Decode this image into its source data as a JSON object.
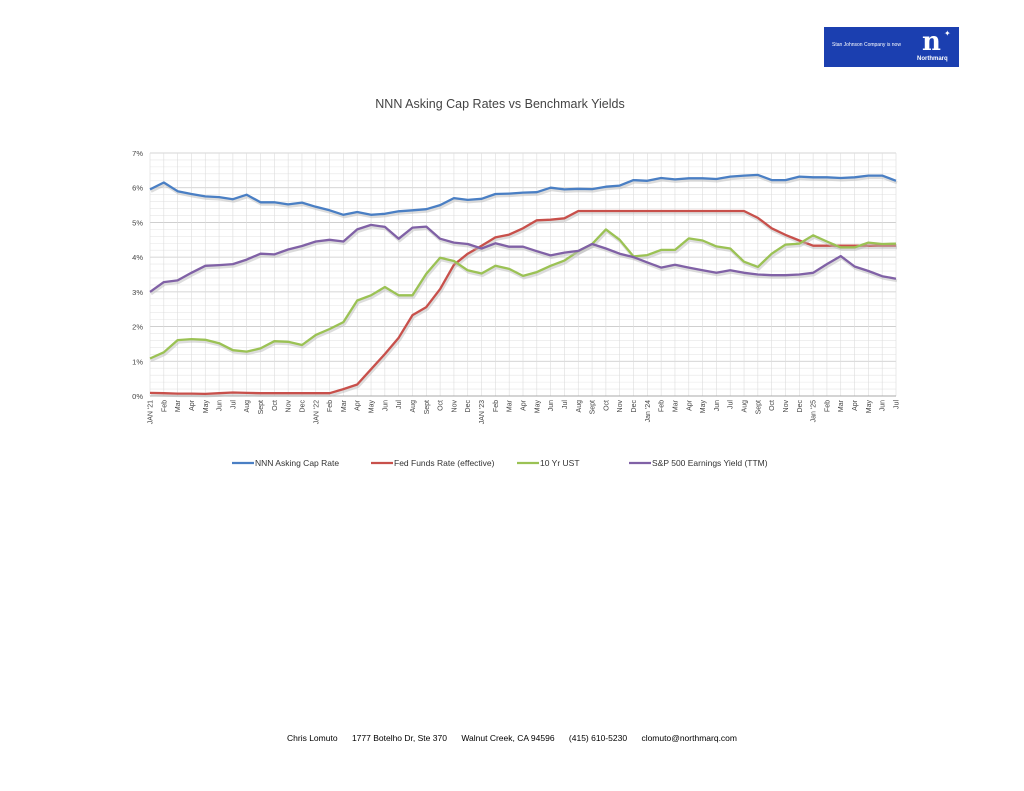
{
  "logo": {
    "tagline": "Stan Johnson Company is now",
    "mark": "n",
    "brand": "Northmarq"
  },
  "footer": {
    "name": "Chris Lomuto",
    "address": "1777 Botelho Dr, Ste 370",
    "city": "Walnut Creek, CA  94596",
    "phone": "(415) 610-5230",
    "email": "clomuto@northmarq.com"
  },
  "chart_data": {
    "type": "line",
    "title": "NNN Asking Cap Rates vs Benchmark Yields",
    "xlabel": "",
    "ylabel": "",
    "ylim": [
      0,
      7
    ],
    "yticks": [
      "0%",
      "1%",
      "2%",
      "3%",
      "4%",
      "5%",
      "6%",
      "7%"
    ],
    "grid": true,
    "legend": "bottom",
    "categories": [
      "JAN '21",
      "Feb",
      "Mar",
      "Apr",
      "May",
      "Jun",
      "Jul",
      "Aug",
      "Sept",
      "Oct",
      "Nov",
      "Dec",
      "JAN '22",
      "Feb",
      "Mar",
      "Apr",
      "May",
      "Jun",
      "Jul",
      "Aug",
      "Sept",
      "Oct",
      "Nov",
      "Dec",
      "JAN '23",
      "Feb",
      "Mar",
      "Apr",
      "May",
      "Jun",
      "Jul",
      "Aug",
      "Sept",
      "Oct",
      "Nov",
      "Dec",
      "Jan '24",
      "Feb",
      "Mar",
      "Apr",
      "May",
      "Jun",
      "Jul",
      "Aug",
      "Sept",
      "Oct",
      "Nov",
      "Dec",
      "Jan '25",
      "Feb",
      "Mar",
      "Apr",
      "May",
      "Jun",
      "Jul"
    ],
    "series": [
      {
        "name": "NNN Asking Cap Rate",
        "color": "#4a7fc4",
        "values": [
          5.95,
          6.15,
          5.9,
          5.82,
          5.75,
          5.73,
          5.67,
          5.8,
          5.58,
          5.58,
          5.52,
          5.57,
          5.45,
          5.35,
          5.22,
          5.3,
          5.22,
          5.25,
          5.32,
          5.35,
          5.38,
          5.5,
          5.7,
          5.65,
          5.68,
          5.82,
          5.83,
          5.86,
          5.87,
          6.0,
          5.95,
          5.97,
          5.96,
          6.03,
          6.06,
          6.22,
          6.2,
          6.28,
          6.24,
          6.27,
          6.27,
          6.25,
          6.32,
          6.35,
          6.37,
          6.22,
          6.22,
          6.32,
          6.3,
          6.3,
          6.28,
          6.3,
          6.35,
          6.35,
          6.2
        ]
      },
      {
        "name": "Fed Funds Rate (effective)",
        "color": "#c8504b",
        "values": [
          0.09,
          0.08,
          0.07,
          0.07,
          0.06,
          0.08,
          0.1,
          0.09,
          0.08,
          0.08,
          0.08,
          0.08,
          0.08,
          0.08,
          0.2,
          0.33,
          0.77,
          1.21,
          1.68,
          2.33,
          2.56,
          3.08,
          3.78,
          4.1,
          4.33,
          4.57,
          4.65,
          4.83,
          5.06,
          5.08,
          5.12,
          5.33,
          5.33,
          5.33,
          5.33,
          5.33,
          5.33,
          5.33,
          5.33,
          5.33,
          5.33,
          5.33,
          5.33,
          5.33,
          5.13,
          4.83,
          4.64,
          4.48,
          4.33,
          4.33,
          4.33,
          4.33,
          4.33,
          4.33,
          4.33
        ]
      },
      {
        "name": "10 Yr UST",
        "color": "#9bc254",
        "values": [
          1.08,
          1.26,
          1.61,
          1.64,
          1.62,
          1.52,
          1.32,
          1.28,
          1.37,
          1.58,
          1.56,
          1.47,
          1.76,
          1.93,
          2.13,
          2.75,
          2.9,
          3.14,
          2.9,
          2.9,
          3.52,
          3.98,
          3.89,
          3.62,
          3.53,
          3.75,
          3.66,
          3.46,
          3.57,
          3.75,
          3.9,
          4.17,
          4.38,
          4.8,
          4.5,
          4.02,
          4.06,
          4.21,
          4.21,
          4.54,
          4.48,
          4.31,
          4.25,
          3.87,
          3.72,
          4.1,
          4.36,
          4.39,
          4.63,
          4.45,
          4.28,
          4.28,
          4.42,
          4.38,
          4.39
        ]
      },
      {
        "name": "S&P 500 Earnings Yield (TTM)",
        "color": "#8061a6",
        "values": [
          3.0,
          3.28,
          3.33,
          3.55,
          3.75,
          3.77,
          3.8,
          3.93,
          4.1,
          4.08,
          4.22,
          4.32,
          4.45,
          4.5,
          4.45,
          4.8,
          4.93,
          4.87,
          4.53,
          4.85,
          4.88,
          4.53,
          4.42,
          4.38,
          4.25,
          4.4,
          4.3,
          4.3,
          4.17,
          4.05,
          4.13,
          4.18,
          4.38,
          4.25,
          4.1,
          4.0,
          3.85,
          3.7,
          3.78,
          3.7,
          3.62,
          3.55,
          3.62,
          3.55,
          3.5,
          3.48,
          3.48,
          3.5,
          3.55,
          3.8,
          4.03,
          3.73,
          3.6,
          3.45,
          3.38
        ]
      }
    ]
  }
}
